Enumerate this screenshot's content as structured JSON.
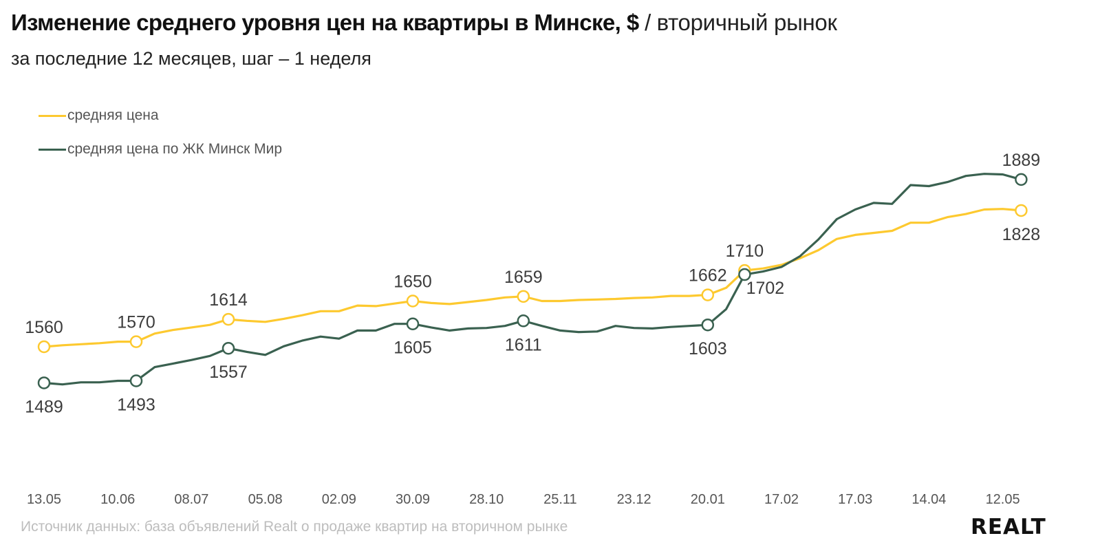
{
  "title": {
    "bold": "Изменение среднего уровня цен на квартиры в Минске, $",
    "separator": "/",
    "thin": "вторичный рынок"
  },
  "subtitle": "за последние 12 месяцев, шаг – 1 неделя",
  "source": "Источник данных: база объявлений Realt о продаже квартир на вторичном рынке",
  "logo": "REALT",
  "colors": {
    "avg": "#fdc92f",
    "minsk_mir": "#3a6150"
  },
  "chart_data": {
    "type": "line",
    "title": "Изменение среднего уровня цен на квартиры в Минске, $",
    "xlabel": "",
    "ylabel": "",
    "ylim": [
      1420,
      1960
    ],
    "grid": false,
    "legend": "top-left",
    "x_tick_labels": [
      "13.05",
      "10.06",
      "08.07",
      "05.08",
      "02.09",
      "30.09",
      "28.10",
      "25.11",
      "23.12",
      "20.01",
      "17.02",
      "17.03",
      "14.04",
      "12.05"
    ],
    "x_tick_every": 4,
    "series": [
      {
        "name": "средняя цена",
        "color": "#fdc92f",
        "values": [
          1560,
          1563,
          1565,
          1567,
          1570,
          1570,
          1586,
          1593,
          1598,
          1603,
          1614,
          1611,
          1609,
          1615,
          1622,
          1630,
          1630,
          1641,
          1640,
          1645,
          1650,
          1646,
          1644,
          1648,
          1652,
          1657,
          1659,
          1650,
          1650,
          1652,
          1653,
          1654,
          1656,
          1657,
          1660,
          1660,
          1662,
          1676,
          1710,
          1714,
          1721,
          1734,
          1750,
          1772,
          1780,
          1784,
          1788,
          1804,
          1804,
          1815,
          1821,
          1830,
          1831,
          1828
        ],
        "labels": [
          {
            "index": 0,
            "text": "1560",
            "pos": "above"
          },
          {
            "index": 5,
            "text": "1570",
            "pos": "above"
          },
          {
            "index": 10,
            "text": "1614",
            "pos": "above"
          },
          {
            "index": 20,
            "text": "1650",
            "pos": "above"
          },
          {
            "index": 26,
            "text": "1659",
            "pos": "above"
          },
          {
            "index": 36,
            "text": "1662",
            "pos": "above"
          },
          {
            "index": 38,
            "text": "1710",
            "pos": "above"
          },
          {
            "index": 53,
            "text": "1828",
            "pos": "below"
          }
        ]
      },
      {
        "name": "средняя цена по ЖК Минск Мир",
        "color": "#3a6150",
        "values": [
          1489,
          1486,
          1490,
          1490,
          1493,
          1493,
          1520,
          1527,
          1534,
          1542,
          1557,
          1550,
          1544,
          1561,
          1572,
          1580,
          1576,
          1592,
          1592,
          1605,
          1605,
          1598,
          1592,
          1596,
          1597,
          1601,
          1611,
          1601,
          1592,
          1589,
          1590,
          1601,
          1597,
          1596,
          1599,
          1601,
          1603,
          1634,
          1702,
          1708,
          1717,
          1738,
          1771,
          1811,
          1830,
          1843,
          1841,
          1878,
          1876,
          1884,
          1896,
          1900,
          1899,
          1889
        ],
        "labels": [
          {
            "index": 0,
            "text": "1489",
            "pos": "below"
          },
          {
            "index": 5,
            "text": "1493",
            "pos": "below"
          },
          {
            "index": 10,
            "text": "1557",
            "pos": "below"
          },
          {
            "index": 20,
            "text": "1605",
            "pos": "below"
          },
          {
            "index": 26,
            "text": "1611",
            "pos": "below"
          },
          {
            "index": 36,
            "text": "1603",
            "pos": "below"
          },
          {
            "index": 38,
            "text": "1702",
            "pos": "below-right"
          },
          {
            "index": 53,
            "text": "1889",
            "pos": "above"
          }
        ]
      }
    ]
  }
}
